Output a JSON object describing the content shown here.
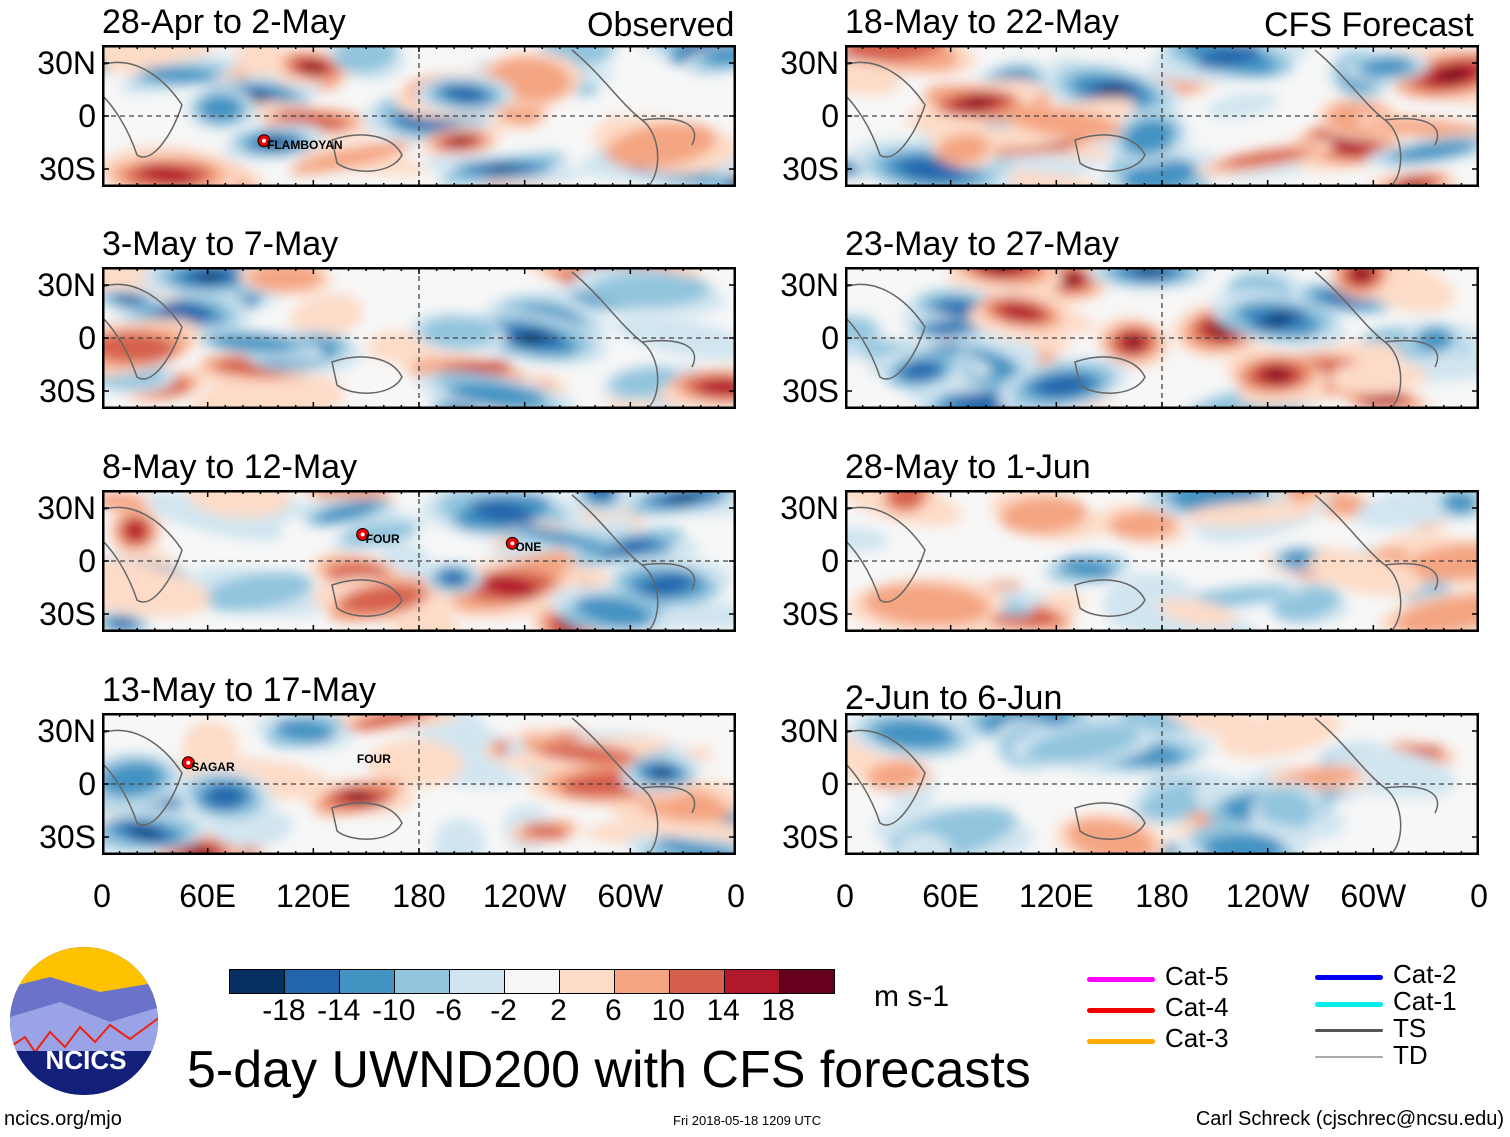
{
  "headers": {
    "observed": "Observed",
    "forecast": "CFS Forecast"
  },
  "panels": {
    "observed": [
      {
        "title": "28-Apr to 2-May",
        "storms": [
          {
            "name": "FLAMBOYAN",
            "lon": 92,
            "lat": -14,
            "marker": true
          }
        ]
      },
      {
        "title": "3-May to 7-May",
        "storms": []
      },
      {
        "title": "8-May to 12-May",
        "storms": [
          {
            "name": "FOUR",
            "lon": 148,
            "lat": 15,
            "marker": true
          },
          {
            "name": "ONE",
            "lon": 233,
            "lat": 10,
            "marker": true
          }
        ]
      },
      {
        "title": "13-May to 17-May",
        "storms": [
          {
            "name": "SAGAR",
            "lon": 49,
            "lat": 12,
            "marker": true
          },
          {
            "name": "FOUR",
            "lon": 147,
            "lat": 14,
            "marker": false
          }
        ]
      }
    ],
    "forecast": [
      {
        "title": "18-May to 22-May"
      },
      {
        "title": "23-May to 27-May"
      },
      {
        "title": "28-May to 1-Jun"
      },
      {
        "title": "2-Jun to 6-Jun"
      }
    ]
  },
  "lat_labels": [
    "30N",
    "0",
    "30S"
  ],
  "lon_labels": [
    "0",
    "60E",
    "120E",
    "180",
    "120W",
    "60W",
    "0"
  ],
  "colorbar": {
    "colors": [
      "#053061",
      "#2166ac",
      "#4393c3",
      "#92c5de",
      "#d1e5f0",
      "#f7f7f7",
      "#fddbc7",
      "#f4a582",
      "#d6604d",
      "#b2182b",
      "#67001f"
    ],
    "ticks": [
      "-18",
      "-14",
      "-10",
      "-6",
      "-2",
      "2",
      "6",
      "10",
      "14",
      "18"
    ],
    "units": "m s-1"
  },
  "legend": [
    {
      "label": "Cat-5",
      "color": "#ff00ff"
    },
    {
      "label": "Cat-4",
      "color": "#ee0000"
    },
    {
      "label": "Cat-3",
      "color": "#ffaa00"
    },
    {
      "label": "Cat-2",
      "color": "#0000ee"
    },
    {
      "label": "Cat-1",
      "color": "#00eeee"
    },
    {
      "label": "TS",
      "color": "#555555"
    },
    {
      "label": "TD",
      "color": "#aaaaaa"
    }
  ],
  "logo_text": "NCICS",
  "main_title": "5-day UWND200 with CFS forecasts",
  "footer": {
    "left": "ncics.org/mjo",
    "center": "Fri 2018-05-18 1209 UTC",
    "right": "Carl Schreck (cjschrec@ncsu.edu)"
  }
}
